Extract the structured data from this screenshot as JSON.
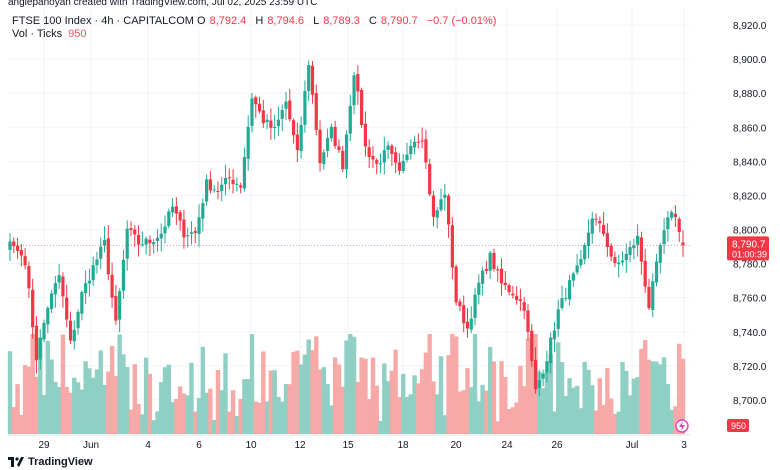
{
  "author_line": "anglepanoyan created with TradingView.com, Jul 02, 2025 23:59 UTC",
  "legend": {
    "symbol": "FTSE 100 Index · 4h · CAPITALCOM",
    "o_label": "O",
    "o_value": "8,792.4",
    "h_label": "H",
    "h_value": "8,794.6",
    "l_label": "L",
    "l_value": "8,789.3",
    "c_label": "C",
    "c_value": "8,790.7",
    "change": "−0.7 (−0.01%)",
    "vol_label": "Vol · Ticks",
    "vol_value": "950"
  },
  "logo_text": "TradingView",
  "colors": {
    "up": "#22ab94",
    "down": "#f23645",
    "vol_up": "#8fcfc4",
    "vol_down": "#f7a9a7",
    "grid": "#f0f3fa",
    "price_tag": "#f23645"
  },
  "chart_data": {
    "type": "candlestick",
    "x_ticks": [
      "29",
      "Jun",
      "4",
      "6",
      "10",
      "12",
      "15",
      "18",
      "20",
      "24",
      "26",
      "Jul",
      "3"
    ],
    "y_ticks": [
      "8,920.0",
      "8,900.0",
      "8,880.0",
      "8,860.0",
      "8,840.0",
      "8,820.0",
      "8,800.0",
      "8,780.0",
      "8,760.0",
      "8,740.0",
      "8,720.0",
      "8,700.0"
    ],
    "ylim": [
      8680,
      8930
    ],
    "last_price": "8,790.7",
    "countdown": "01:00:39",
    "last_volume": "950",
    "anchors": [
      [
        0,
        8793
      ],
      [
        4,
        8782
      ],
      [
        7,
        8725
      ],
      [
        10,
        8755
      ],
      [
        13,
        8773
      ],
      [
        16,
        8733
      ],
      [
        19,
        8762
      ],
      [
        22,
        8778
      ],
      [
        25,
        8792
      ],
      [
        28,
        8744
      ],
      [
        31,
        8800
      ],
      [
        34,
        8792
      ],
      [
        37,
        8793
      ],
      [
        40,
        8798
      ],
      [
        43,
        8813
      ],
      [
        46,
        8798
      ],
      [
        49,
        8798
      ],
      [
        52,
        8827
      ],
      [
        55,
        8823
      ],
      [
        58,
        8830
      ],
      [
        61,
        8826
      ],
      [
        64,
        8878
      ],
      [
        67,
        8864
      ],
      [
        70,
        8858
      ],
      [
        73,
        8875
      ],
      [
        76,
        8844
      ],
      [
        79,
        8898
      ],
      [
        82,
        8840
      ],
      [
        85,
        8858
      ],
      [
        88,
        8838
      ],
      [
        91,
        8893
      ],
      [
        94,
        8848
      ],
      [
        97,
        8838
      ],
      [
        100,
        8847
      ],
      [
        103,
        8832
      ],
      [
        106,
        8852
      ],
      [
        109,
        8855
      ],
      [
        112,
        8806
      ],
      [
        115,
        8822
      ],
      [
        118,
        8758
      ],
      [
        121,
        8742
      ],
      [
        124,
        8768
      ],
      [
        127,
        8784
      ],
      [
        130,
        8768
      ],
      [
        133,
        8763
      ],
      [
        136,
        8755
      ],
      [
        139,
        8705
      ],
      [
        142,
        8725
      ],
      [
        145,
        8752
      ],
      [
        148,
        8768
      ],
      [
        151,
        8780
      ],
      [
        154,
        8808
      ],
      [
        157,
        8798
      ],
      [
        160,
        8778
      ],
      [
        163,
        8785
      ],
      [
        166,
        8795
      ],
      [
        169,
        8755
      ],
      [
        172,
        8790
      ],
      [
        175,
        8812
      ],
      [
        178,
        8795
      ]
    ],
    "volume_scale": [
      300,
      1100
    ]
  }
}
